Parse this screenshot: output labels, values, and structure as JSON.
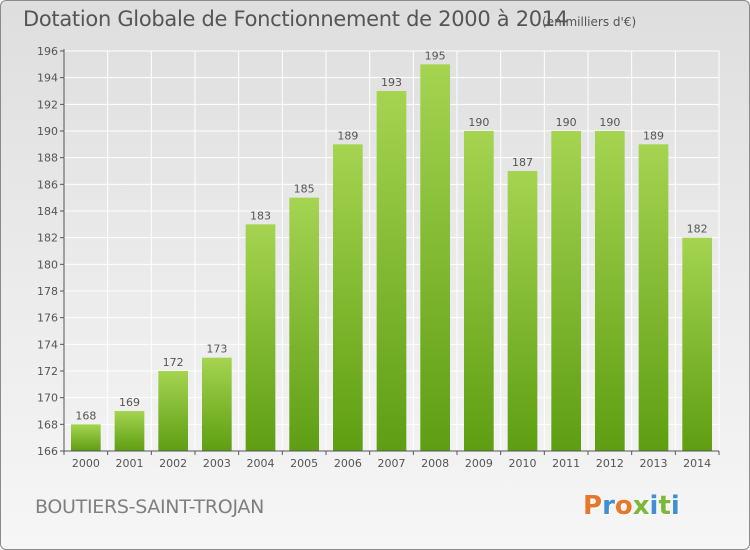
{
  "header": {
    "title": "Dotation Globale de Fonctionnement de 2000 à 2014",
    "unit": "(en milliers d'€)"
  },
  "footer": {
    "town": "BOUTIERS-SAINT-TROJAN",
    "logo_text": "Proxiti",
    "logo_colors": [
      "#e8762b",
      "#3f8ed6",
      "#e8762b",
      "#7cb83a",
      "#3f8ed6",
      "#7cb83a",
      "#3f8ed6"
    ]
  },
  "colors": {
    "bar_top": "#a5d451",
    "bar_bottom": "#5e9e12",
    "grid": "#ffffff",
    "axis": "#555555",
    "text": "#555555"
  },
  "chart_data": {
    "type": "bar",
    "title": "Dotation Globale de Fonctionnement de 2000 à 2014",
    "subtitle": "(en milliers d'€)",
    "categories": [
      "2000",
      "2001",
      "2002",
      "2003",
      "2004",
      "2005",
      "2006",
      "2007",
      "2008",
      "2009",
      "2010",
      "2011",
      "2012",
      "2013",
      "2014"
    ],
    "values": [
      168,
      169,
      172,
      173,
      183,
      185,
      189,
      193,
      195,
      190,
      187,
      190,
      190,
      189,
      182
    ],
    "ylim": [
      166,
      196
    ],
    "yticks": [
      166,
      168,
      170,
      172,
      174,
      176,
      178,
      180,
      182,
      184,
      186,
      188,
      190,
      192,
      194,
      196
    ],
    "grid": true,
    "xlabel": "",
    "ylabel": ""
  }
}
